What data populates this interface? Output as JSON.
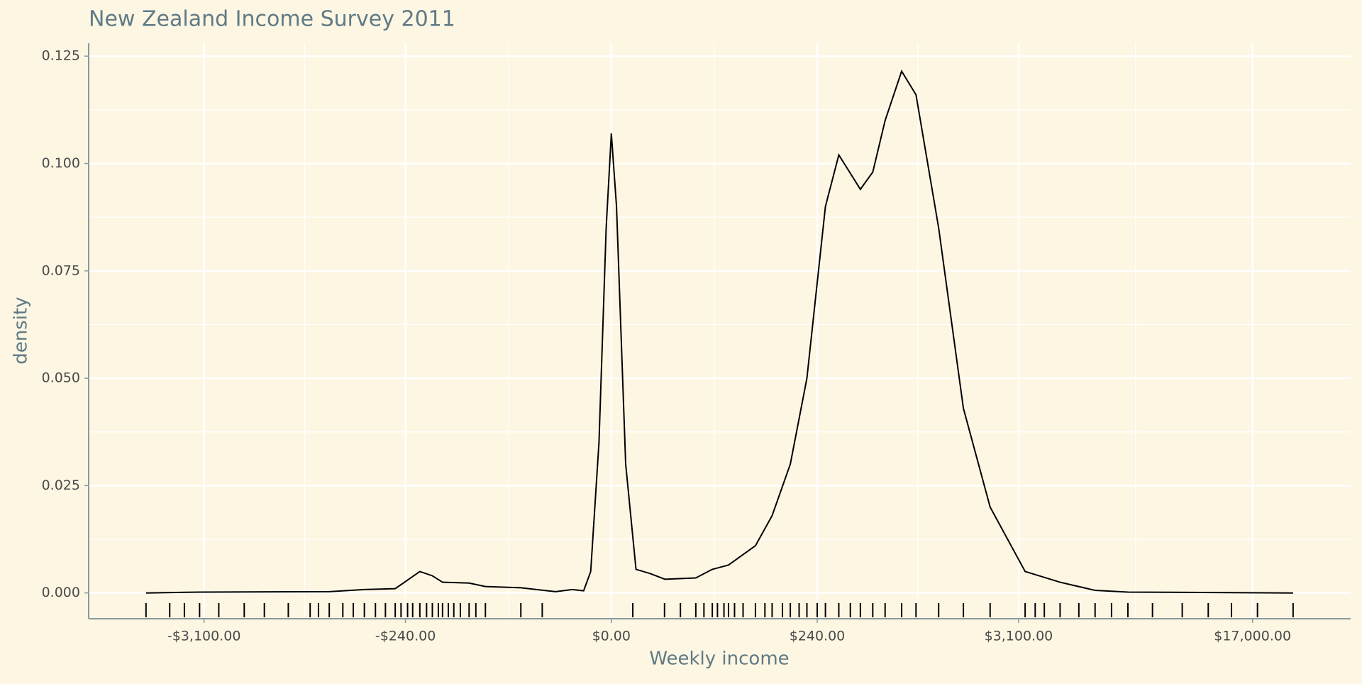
{
  "chart_data": {
    "type": "density",
    "title": "New Zealand Income Survey 2011",
    "xlabel": "Weekly income",
    "ylabel": "density",
    "xscale": "modulus-power",
    "x": [
      -5110,
      -3230,
      -782,
      -475,
      -288,
      -231,
      -183,
      -142,
      -114,
      -60,
      -38,
      -11,
      -1.8,
      -0.47,
      -0.13,
      -0.043,
      -0.0063,
      -0.00024,
      0,
      0.00024,
      0.011,
      0.084,
      0.47,
      1.54,
      8.5,
      16.6,
      29,
      63,
      95,
      142,
      198,
      278,
      349,
      490,
      588,
      699,
      871,
      1044,
      1366,
      1795,
      2362,
      3290,
      4460,
      5910,
      7560,
      21400
    ],
    "values": [
      0,
      0.0002,
      0.0003,
      0.0008,
      0.001,
      0.003,
      0.005,
      0.004,
      0.0025,
      0.0023,
      0.0015,
      0.0012,
      0.0003,
      0.0008,
      0.0005,
      0.005,
      0.035,
      0.085,
      0.107,
      0.09,
      0.03,
      0.0055,
      0.0045,
      0.0032,
      0.0035,
      0.0055,
      0.0065,
      0.011,
      0.018,
      0.03,
      0.05,
      0.09,
      0.102,
      0.094,
      0.098,
      0.11,
      0.1215,
      0.116,
      0.085,
      0.043,
      0.02,
      0.005,
      0.0025,
      0.0006,
      0.0002,
      0
    ],
    "color": "#000000",
    "rug": [
      -5110,
      -4200,
      -3700,
      -3230,
      -2700,
      -2100,
      -1700,
      -1300,
      -1000,
      -900,
      -782,
      -650,
      -560,
      -475,
      -400,
      -340,
      -288,
      -260,
      -231,
      -210,
      -183,
      -160,
      -142,
      -125,
      -114,
      -100,
      -88,
      -75,
      -60,
      -50,
      -38,
      -11,
      -4,
      0.05,
      1.5,
      4,
      8.5,
      12,
      16.6,
      20,
      25,
      29,
      35,
      45,
      63,
      80,
      95,
      120,
      142,
      170,
      198,
      240,
      278,
      349,
      420,
      490,
      588,
      699,
      871,
      1044,
      1366,
      1795,
      2362,
      3290,
      3600,
      3900,
      4460,
      5200,
      5910,
      6700,
      7560,
      9000,
      11000,
      13000,
      15000,
      17500,
      21400
    ],
    "xlim": [
      -7900,
      29000
    ],
    "xticks": [
      {
        "value": -3100,
        "label": "-$3,100.00"
      },
      {
        "value": -240,
        "label": "-$240.00"
      },
      {
        "value": 0,
        "label": "$0.00"
      },
      {
        "value": 240,
        "label": "$240.00"
      },
      {
        "value": 3100,
        "label": "$3,100.00"
      },
      {
        "value": 17000,
        "label": "$17,000.00"
      }
    ],
    "ylim": [
      -0.006,
      0.128
    ],
    "yticks": [
      {
        "value": 0,
        "label": "0.000"
      },
      {
        "value": 0.025,
        "label": "0.025"
      },
      {
        "value": 0.05,
        "label": "0.050"
      },
      {
        "value": 0.075,
        "label": "0.075"
      },
      {
        "value": 0.1,
        "label": "0.100"
      },
      {
        "value": 0.125,
        "label": "0.125"
      }
    ],
    "grid": true
  }
}
